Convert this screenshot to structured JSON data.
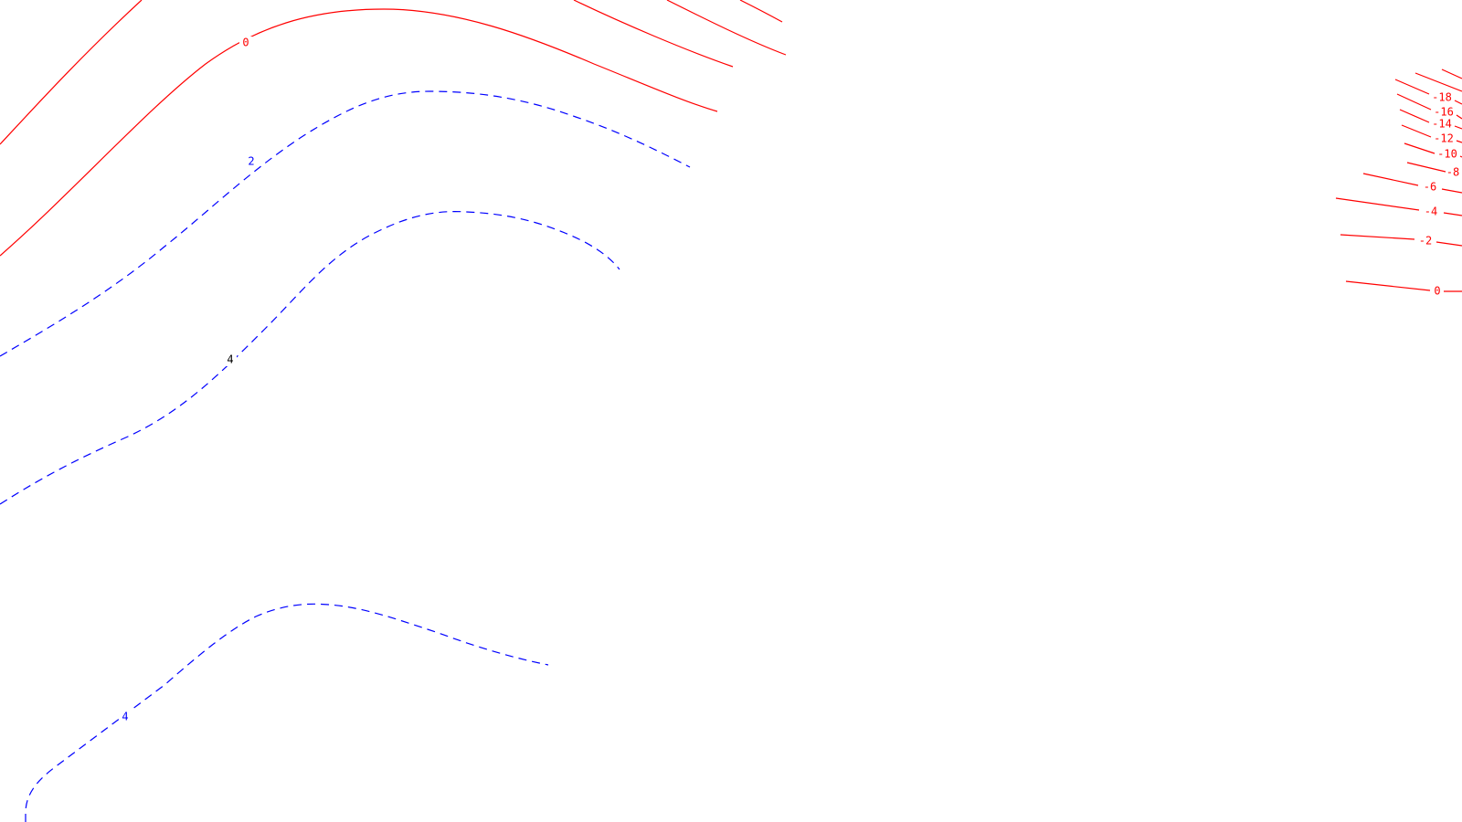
{
  "colors": {
    "negative_solid": "#ff0000",
    "positive_dashed": "#0000ff",
    "black_label": "#000000",
    "background": "#ffffff"
  },
  "labels": {
    "left_zero": "0",
    "left_two": "2",
    "left_four_mid": "4",
    "left_four_bottom": "4",
    "right_m18": "-18",
    "right_m16": "-16",
    "right_m14": "-14",
    "right_m12": "-12",
    "right_m10": "-10",
    "right_m8": "-8",
    "right_m6": "-6",
    "right_m4": "-4",
    "right_m2": "-2",
    "right_zero": "0"
  }
}
